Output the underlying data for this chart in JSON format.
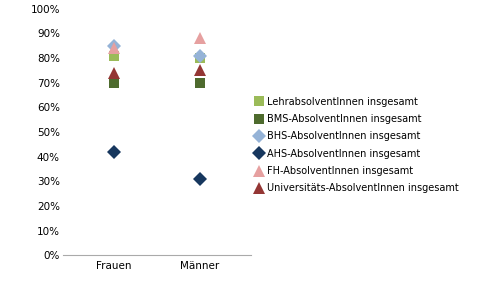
{
  "categories": [
    "Frauen",
    "Männer"
  ],
  "series": [
    {
      "label": "Lehrabsolventlnnen insgesamt",
      "values": [
        0.81,
        0.8
      ],
      "color": "#9bbb59",
      "marker": "s",
      "markersize": 7,
      "zorder": 3
    },
    {
      "label": "BMS-Absolventlnnen insgesamt",
      "values": [
        0.7,
        0.7
      ],
      "color": "#4e6b2e",
      "marker": "s",
      "markersize": 7,
      "zorder": 4
    },
    {
      "label": "BHS-Absolventlnnen insgesamt",
      "values": [
        0.85,
        0.81
      ],
      "color": "#95b3d7",
      "marker": "D",
      "markersize": 7,
      "zorder": 5
    },
    {
      "label": "AHS-Absolventlnnen insgesamt",
      "values": [
        0.42,
        0.31
      ],
      "color": "#17375e",
      "marker": "D",
      "markersize": 7,
      "zorder": 6
    },
    {
      "label": "FH-Absolventlnnen insgesamt",
      "values": [
        0.84,
        0.88
      ],
      "color": "#e6a0a0",
      "marker": "^",
      "markersize": 9,
      "zorder": 7
    },
    {
      "label": "Universitäts-Absolventlnnen insgesamt",
      "values": [
        0.74,
        0.75
      ],
      "color": "#943634",
      "marker": "^",
      "markersize": 9,
      "zorder": 8
    }
  ],
  "ylim": [
    0.0,
    1.0
  ],
  "yticks": [
    0.0,
    0.1,
    0.2,
    0.3,
    0.4,
    0.5,
    0.6,
    0.7,
    0.8,
    0.9,
    1.0
  ],
  "ytick_labels": [
    "0%",
    "10%",
    "20%",
    "30%",
    "40%",
    "50%",
    "60%",
    "70%",
    "80%",
    "90%",
    "100%"
  ],
  "background_color": "#ffffff",
  "plot_bg_color": "#ffffff",
  "legend_fontsize": 7.0,
  "tick_fontsize": 7.5
}
